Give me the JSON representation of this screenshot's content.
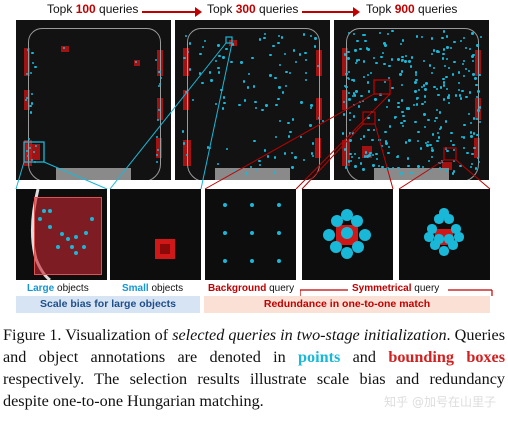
{
  "top_labels": [
    {
      "prefix": "Topk ",
      "number": "100",
      "suffix": " queries"
    },
    {
      "prefix": "Topk ",
      "number": "300",
      "suffix": " queries"
    },
    {
      "prefix": "Topk ",
      "number": "900",
      "suffix": " queries"
    }
  ],
  "zoom_labels": [
    {
      "highlight": "Large",
      "rest": " objects",
      "color": "#1296d6"
    },
    {
      "highlight": "Small",
      "rest": " objects",
      "color": "#1296d6"
    },
    {
      "highlight": "Background",
      "rest": " query",
      "color": "#c00000"
    },
    {
      "highlight": "Symmetrical",
      "rest": " query",
      "color": "#c00000"
    }
  ],
  "bars": {
    "scale_bias": "Scale bias for large objects",
    "redundancy": "Redundance in one-to-one match"
  },
  "caption": {
    "fig": "Figure 1. Visualization of ",
    "italic": "selected queries in two-stage initialization",
    "part2": ". Queries and object annotations are denoted in ",
    "points": "points",
    "and": " and ",
    "boxes": "bounding boxes",
    "part3": " respectively. The selection results illustrate scale bias and redundancy despite one-to-one Hungarian matching."
  },
  "watermark": "知乎 @加号在山里子",
  "colors": {
    "query_point": "#19b8d8",
    "annotation_box": "#d21414",
    "arrow": "#c00000"
  }
}
